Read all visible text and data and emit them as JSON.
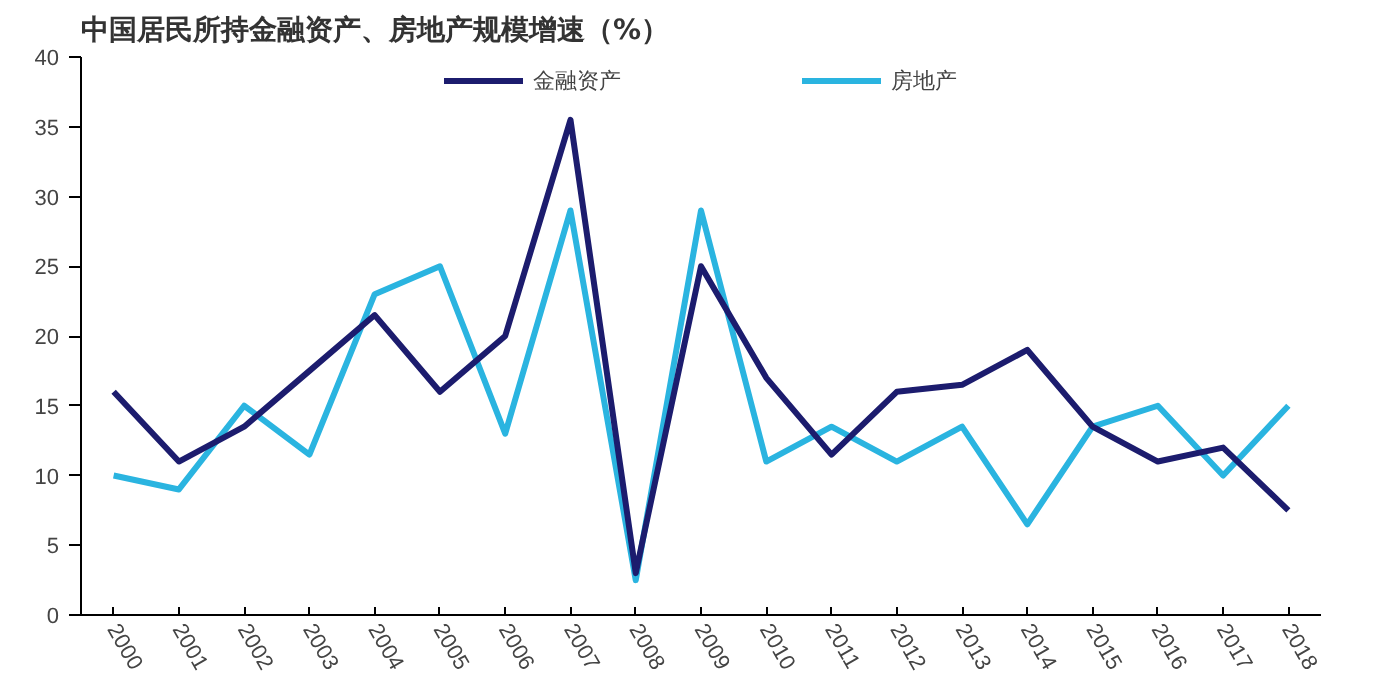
{
  "chart_data": {
    "type": "line",
    "title": "中国居民所持金融资产、房地产规模增速（%）",
    "categories": [
      "2000",
      "2001",
      "2002",
      "2003",
      "2004",
      "2005",
      "2006",
      "2007",
      "2008",
      "2009",
      "2010",
      "2011",
      "2012",
      "2013",
      "2014",
      "2015",
      "2016",
      "2017",
      "2018"
    ],
    "series": [
      {
        "name": "金融资产",
        "color": "#1c1c6e",
        "values": [
          16,
          11,
          13.5,
          17.5,
          21.5,
          16,
          20,
          35.5,
          3,
          25,
          17,
          11.5,
          16,
          16.5,
          19,
          13.5,
          11,
          12,
          7.5
        ]
      },
      {
        "name": "房地产",
        "color": "#2ab4e0",
        "values": [
          10,
          9,
          15,
          11.5,
          23,
          25,
          13,
          29,
          2.5,
          29,
          11,
          13.5,
          11,
          13.5,
          6.5,
          13.5,
          15,
          10,
          15
        ]
      }
    ],
    "ylim": [
      0,
      40
    ],
    "yticks": [
      0,
      5,
      10,
      15,
      20,
      25,
      30,
      35,
      40
    ],
    "grid": false,
    "legend": "top",
    "marker": "none",
    "line_style": "solid"
  }
}
